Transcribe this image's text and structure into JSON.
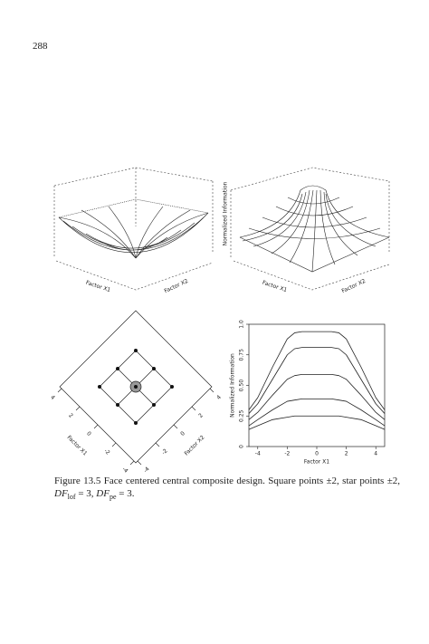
{
  "page_number": "288",
  "surface_plots": [
    {
      "x_label": "Factor X1",
      "y_label": "Factor X2"
    },
    {
      "x_label": "Factor X1",
      "y_label": "Factor X2",
      "z_label": "Normalized Information"
    }
  ],
  "chart_data": [
    {
      "type": "scatter",
      "x_label": "Factor X1",
      "y_label": "Factor X2",
      "x": [
        -2,
        0,
        2,
        -2,
        0,
        2,
        -2,
        0,
        2
      ],
      "values": [
        -2,
        -2,
        -2,
        0,
        0,
        0,
        2,
        2,
        2
      ],
      "xlim": [
        -4.2,
        4.2
      ],
      "ylim": [
        -4.2,
        4.2
      ],
      "xticks": [
        -4,
        -2,
        0,
        2,
        4
      ],
      "yticks": [
        -4,
        -2,
        0,
        2,
        4
      ],
      "color": "#111111"
    },
    {
      "type": "line",
      "x_label": "Factor X1",
      "y_label": "Normalized Information",
      "x": [
        -4.6,
        -4,
        -3,
        -2,
        -1.5,
        -1,
        0,
        1,
        1.5,
        2,
        3,
        4,
        4.6
      ],
      "series": [
        {
          "color": "#222222",
          "values": [
            0.3,
            0.4,
            0.65,
            0.88,
            0.93,
            0.94,
            0.94,
            0.94,
            0.93,
            0.88,
            0.65,
            0.4,
            0.3
          ]
        },
        {
          "color": "#222222",
          "values": [
            0.27,
            0.35,
            0.55,
            0.75,
            0.8,
            0.81,
            0.81,
            0.81,
            0.8,
            0.75,
            0.55,
            0.35,
            0.27
          ]
        },
        {
          "color": "#222222",
          "values": [
            0.22,
            0.28,
            0.42,
            0.55,
            0.58,
            0.59,
            0.59,
            0.59,
            0.58,
            0.55,
            0.42,
            0.28,
            0.22
          ]
        },
        {
          "color": "#222222",
          "values": [
            0.17,
            0.22,
            0.3,
            0.37,
            0.38,
            0.39,
            0.39,
            0.39,
            0.38,
            0.37,
            0.3,
            0.22,
            0.17
          ]
        },
        {
          "color": "#222222",
          "values": [
            0.14,
            0.17,
            0.22,
            0.24,
            0.25,
            0.25,
            0.25,
            0.25,
            0.25,
            0.24,
            0.22,
            0.17,
            0.14
          ]
        }
      ],
      "xlim": [
        -4.6,
        4.6
      ],
      "ylim": [
        0,
        1
      ],
      "xticks": [
        -4,
        -2,
        0,
        2,
        4
      ],
      "yticks": [
        0,
        {
          "value": 0.25,
          "label": "0.25"
        },
        {
          "value": 0.5,
          "label": "0.50"
        },
        {
          "value": 0.75,
          "label": "0.75"
        },
        {
          "value": 1,
          "label": "1.0"
        }
      ]
    }
  ],
  "caption": {
    "label": "Figure 13.5",
    "text": "Face centered central composite design. Square points ±2, star points ±2,",
    "df1": "DF",
    "df1_sub": "lof",
    "df1_rest": "= 3,",
    "df2": "DF",
    "df2_sub": "pe",
    "df2_rest": "= 3."
  }
}
